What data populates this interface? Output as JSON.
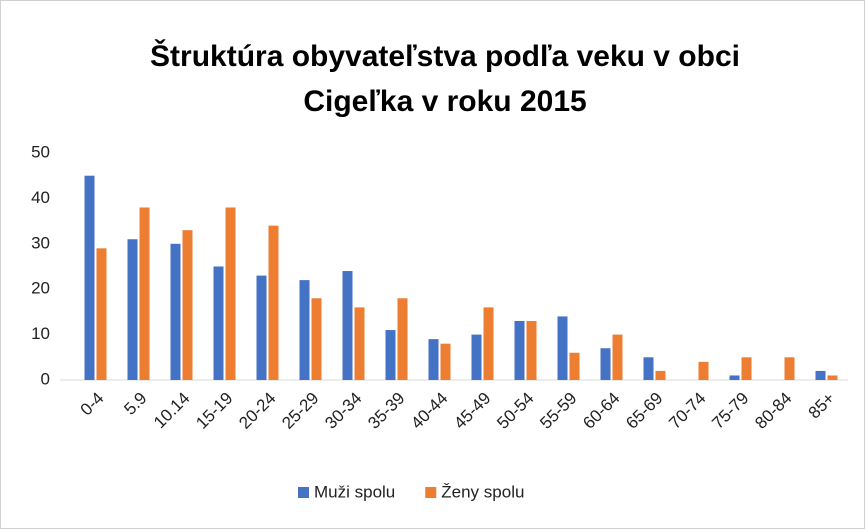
{
  "chart_data": {
    "type": "bar",
    "title": [
      "Štruktúra obyvateľstva podľa veku v obci",
      "Cigeľka v roku 2015"
    ],
    "categories": [
      "0-4",
      "5.9",
      "10.14",
      "15-19",
      "20-24",
      "25-29",
      "30-34",
      "35-39",
      "40-44",
      "45-49",
      "50-54",
      "55-59",
      "60-64",
      "65-69",
      "70-74",
      "75-79",
      "80-84",
      "85+"
    ],
    "series": [
      {
        "name": "Muži spolu",
        "color": "#4472c4",
        "values": [
          45,
          31,
          30,
          25,
          23,
          22,
          24,
          11,
          9,
          10,
          13,
          14,
          7,
          5,
          0,
          1,
          0,
          2
        ]
      },
      {
        "name": "Ženy spolu",
        "color": "#ed7d31",
        "values": [
          29,
          38,
          33,
          38,
          34,
          18,
          16,
          18,
          8,
          16,
          13,
          6,
          10,
          2,
          4,
          5,
          5,
          1
        ]
      }
    ],
    "ylim": [
      0,
      50
    ],
    "yticks": [
      0,
      10,
      20,
      30,
      40,
      50
    ],
    "grid": false,
    "legend": "bottom"
  }
}
